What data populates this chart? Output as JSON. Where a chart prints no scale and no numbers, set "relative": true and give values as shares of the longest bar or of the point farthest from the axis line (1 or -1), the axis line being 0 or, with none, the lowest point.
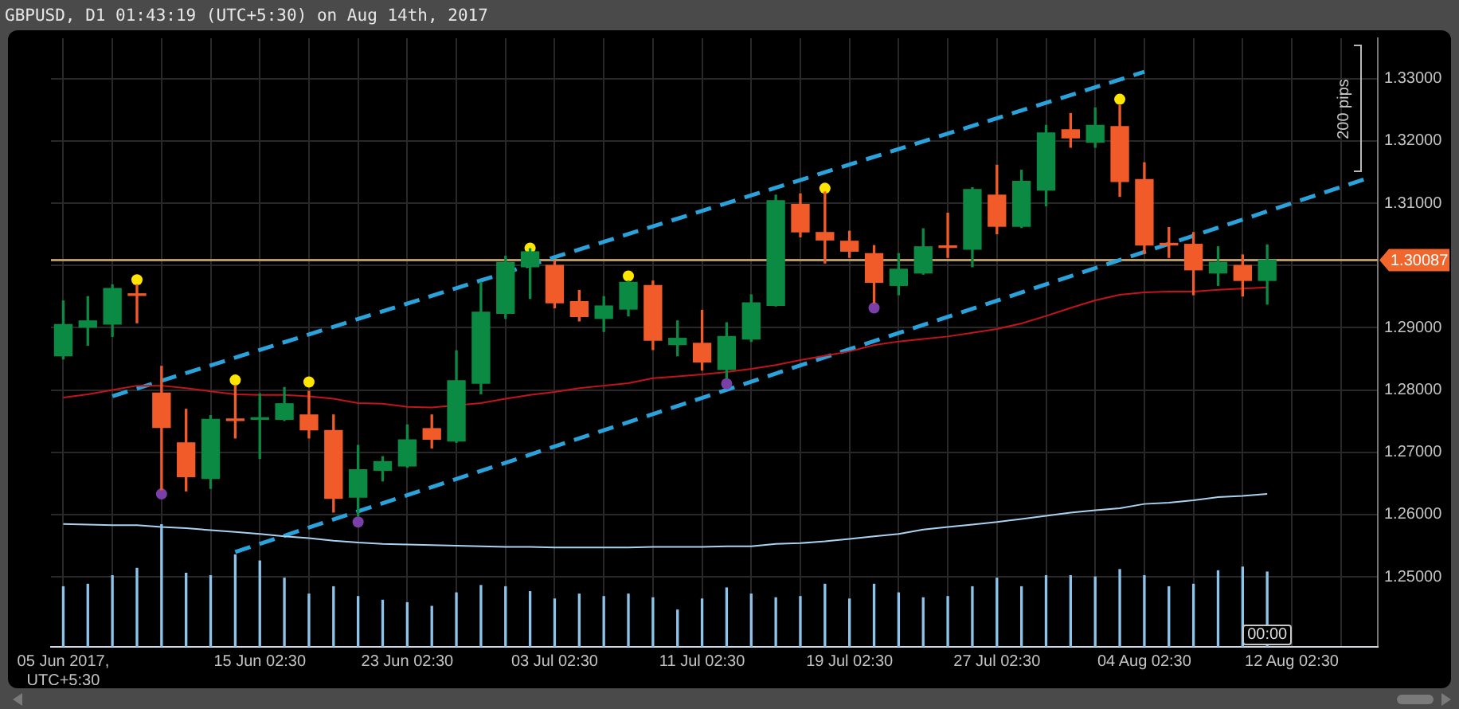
{
  "chart_data": [
    {
      "type": "candlestick",
      "title": "GBPUSD, D1 01:43:19 (UTC+5:30) on Aug 14th, 2017",
      "categories": [
        "05 Jun 2017, UTC+5:30",
        null,
        null,
        null,
        null,
        null,
        null,
        null,
        "15 Jun 02:30",
        null,
        null,
        null,
        null,
        null,
        "23 Jun 02:30",
        null,
        null,
        null,
        null,
        null,
        "03 Jul 02:30",
        null,
        null,
        null,
        null,
        null,
        "11 Jul 02:30",
        null,
        null,
        null,
        null,
        null,
        "19 Jul 02:30",
        null,
        null,
        null,
        null,
        null,
        "27 Jul 02:30",
        null,
        null,
        null,
        null,
        null,
        "04 Aug 02:30",
        null,
        null,
        null,
        null,
        null,
        "12 Aug 02:30",
        null,
        null,
        null
      ],
      "ohlc": [
        [
          1.2855,
          1.2943,
          1.285,
          1.2905
        ],
        [
          1.2901,
          1.295,
          1.2872,
          1.2911
        ],
        [
          1.2906,
          1.2969,
          1.2886,
          1.2963
        ],
        [
          1.2953,
          1.2969,
          1.2908,
          1.2952
        ],
        [
          1.2795,
          1.2838,
          1.264,
          1.274
        ],
        [
          1.2715,
          1.2769,
          1.2638,
          1.2661
        ],
        [
          1.2658,
          1.2759,
          1.2642,
          1.2753
        ],
        [
          1.2752,
          1.2807,
          1.2723,
          1.2751
        ],
        [
          1.2753,
          1.2794,
          1.269,
          1.2754
        ],
        [
          1.2753,
          1.2804,
          1.2751,
          1.2778
        ],
        [
          1.276,
          1.2798,
          1.2723,
          1.2736
        ],
        [
          1.2735,
          1.276,
          1.2604,
          1.2626
        ],
        [
          1.2628,
          1.2711,
          1.2598,
          1.2672
        ],
        [
          1.2671,
          1.2693,
          1.2654,
          1.2685
        ],
        [
          1.2678,
          1.2744,
          1.2676,
          1.272
        ],
        [
          1.2738,
          1.276,
          1.2707,
          1.2721
        ],
        [
          1.2718,
          1.2863,
          1.2716,
          1.2815
        ],
        [
          1.2811,
          1.2973,
          1.2794,
          1.2925
        ],
        [
          1.2923,
          1.3015,
          1.2915,
          1.3005
        ],
        [
          1.2998,
          1.3027,
          1.2947,
          1.3022
        ],
        [
          1.3,
          1.3007,
          1.2932,
          1.294
        ],
        [
          1.2942,
          1.296,
          1.2911,
          1.2918
        ],
        [
          1.2915,
          1.295,
          1.2894,
          1.2935
        ],
        [
          1.293,
          1.2975,
          1.2919,
          1.2973
        ],
        [
          1.2968,
          1.2975,
          1.2865,
          1.288
        ],
        [
          1.2873,
          1.2911,
          1.2855,
          1.2883
        ],
        [
          1.2875,
          1.2928,
          1.2832,
          1.2845
        ],
        [
          1.2833,
          1.2908,
          1.2819,
          1.2886
        ],
        [
          1.2882,
          1.2953,
          1.2878,
          1.294
        ],
        [
          1.2936,
          1.3113,
          1.2935,
          1.3104
        ],
        [
          1.3098,
          1.3115,
          1.3046,
          1.3054
        ],
        [
          1.3053,
          1.3118,
          1.3004,
          1.3041
        ],
        [
          1.3039,
          1.3055,
          1.3013,
          1.3023
        ],
        [
          1.3019,
          1.3032,
          1.294,
          1.2973
        ],
        [
          1.2968,
          1.3019,
          1.2953,
          1.2994
        ],
        [
          1.2988,
          1.3059,
          1.2986,
          1.303
        ],
        [
          1.303,
          1.3084,
          1.3013,
          1.3029
        ],
        [
          1.3026,
          1.3125,
          1.2998,
          1.3122
        ],
        [
          1.3113,
          1.3161,
          1.3051,
          1.3063
        ],
        [
          1.3063,
          1.3153,
          1.3061,
          1.3135
        ],
        [
          1.3121,
          1.3225,
          1.3096,
          1.3213
        ],
        [
          1.3218,
          1.3244,
          1.319,
          1.3205
        ],
        [
          1.3198,
          1.3253,
          1.319,
          1.3225
        ],
        [
          1.3223,
          1.3257,
          1.3111,
          1.3135
        ],
        [
          1.3138,
          1.3165,
          1.3019,
          1.3033
        ],
        [
          1.3034,
          1.3061,
          1.3013,
          1.3033
        ],
        [
          1.3034,
          1.3053,
          1.2953,
          1.2993
        ],
        [
          1.2988,
          1.303,
          1.2968,
          1.3005
        ],
        [
          1.3,
          1.3017,
          1.2951,
          1.2976
        ],
        [
          1.2976,
          1.3033,
          1.2938,
          1.30087
        ],
        null,
        null,
        null,
        null
      ],
      "colors": [
        "#0b8a43",
        "#0b8a43",
        "#0b8a43",
        "#f15a29",
        "#f15a29",
        "#f15a29",
        "#0b8a43",
        "#f15a29",
        "#0b8a43",
        "#0b8a43",
        "#f15a29",
        "#f15a29",
        "#0b8a43",
        "#0b8a43",
        "#0b8a43",
        "#f15a29",
        "#0b8a43",
        "#0b8a43",
        "#0b8a43",
        "#0b8a43",
        "#f15a29",
        "#f15a29",
        "#0b8a43",
        "#0b8a43",
        "#f15a29",
        "#0b8a43",
        "#f15a29",
        "#0b8a43",
        "#0b8a43",
        "#0b8a43",
        "#f15a29",
        "#f15a29",
        "#f15a29",
        "#f15a29",
        "#0b8a43",
        "#0b8a43",
        "#f15a29",
        "#0b8a43",
        "#f15a29",
        "#0b8a43",
        "#0b8a43",
        "#f15a29",
        "#0b8a43",
        "#f15a29",
        "#f15a29",
        "#f15a29",
        "#f15a29",
        "#0b8a43",
        "#f15a29",
        "#0b8a43",
        null,
        null,
        null,
        null
      ],
      "series": [
        {
          "type": "line",
          "color": "#c3141c",
          "values": [
            1.2788,
            1.2793,
            1.28,
            1.2807,
            1.2807,
            1.2803,
            1.2798,
            1.2793,
            1.2792,
            1.2792,
            1.279,
            1.2786,
            1.2779,
            1.2778,
            1.2773,
            1.2772,
            null,
            1.2779,
            1.2786,
            1.2792,
            1.2797,
            1.2803,
            1.2807,
            1.2811,
            1.2819,
            1.2822,
            1.2825,
            1.2829,
            1.2834,
            1.284,
            1.2848,
            1.2855,
            1.2862,
            1.2872,
            1.2878,
            1.2882,
            1.2886,
            1.2892,
            1.2898,
            1.2907,
            1.2919,
            1.2932,
            1.2944,
            1.2953,
            1.2957,
            1.2958,
            1.2958,
            1.2961,
            1.2963,
            1.2965,
            null,
            null,
            null,
            null
          ]
        },
        {
          "type": "line",
          "color": "#a8d2f0",
          "values": [
            1.2585,
            1.2584,
            1.2583,
            1.2583,
            1.258,
            1.2578,
            1.2575,
            1.2572,
            1.2569,
            1.2565,
            1.2562,
            1.2558,
            1.2555,
            1.2553,
            1.2552,
            1.2551,
            1.255,
            1.2549,
            1.2548,
            1.2548,
            1.2547,
            1.2547,
            1.2547,
            1.2547,
            1.2548,
            1.2548,
            1.2548,
            1.2549,
            1.2549,
            1.2553,
            1.2554,
            1.2557,
            1.2561,
            1.2565,
            1.2569,
            1.2576,
            1.258,
            1.2584,
            1.2588,
            1.2593,
            1.2598,
            1.2603,
            1.2607,
            1.261,
            1.2617,
            1.2619,
            1.2623,
            1.2628,
            1.263,
            1.2633,
            null,
            null,
            null,
            null
          ]
        },
        {
          "type": "line",
          "color": "#2aa3dc",
          "line_style": "dashed",
          "values": [
            null,
            null,
            1.279,
            null,
            null,
            null,
            null,
            null,
            null,
            null,
            null,
            null,
            null,
            null,
            null,
            null,
            null,
            null,
            null,
            null,
            null,
            null,
            null,
            null,
            null,
            null,
            null,
            null,
            null,
            null,
            null,
            null,
            null,
            null,
            null,
            null,
            null,
            null,
            null,
            null,
            null,
            null,
            null,
            null,
            1.3311,
            null,
            null,
            null,
            null,
            null,
            null,
            null,
            null,
            null
          ]
        },
        {
          "type": "line",
          "color": "#2aa3dc",
          "line_style": "dashed",
          "values": [
            null,
            null,
            null,
            null,
            null,
            null,
            null,
            1.254,
            null,
            null,
            null,
            null,
            null,
            null,
            null,
            null,
            null,
            null,
            null,
            null,
            null,
            null,
            null,
            null,
            null,
            null,
            null,
            null,
            null,
            null,
            null,
            null,
            null,
            null,
            null,
            null,
            null,
            null,
            null,
            null,
            null,
            null,
            null,
            null,
            null,
            null,
            null,
            null,
            null,
            null,
            null,
            null,
            null,
            1.3139
          ]
        },
        {
          "type": "scatter",
          "color": "#ffe600",
          "marker": "circle",
          "values": [
            null,
            null,
            null,
            1.2977,
            null,
            null,
            null,
            1.2816,
            null,
            null,
            1.2813,
            null,
            null,
            null,
            null,
            null,
            null,
            null,
            null,
            1.3028,
            null,
            null,
            null,
            1.2983,
            null,
            null,
            null,
            null,
            null,
            null,
            null,
            1.3124,
            null,
            null,
            null,
            null,
            null,
            null,
            null,
            null,
            null,
            null,
            null,
            1.3267,
            null,
            null,
            null,
            null,
            null,
            null,
            null,
            null,
            null,
            null
          ]
        },
        {
          "type": "scatter",
          "color": "#7b3fa8",
          "marker": "circle",
          "values": [
            null,
            null,
            null,
            null,
            1.2633,
            null,
            null,
            null,
            null,
            null,
            null,
            null,
            1.2588,
            null,
            null,
            null,
            null,
            null,
            null,
            null,
            null,
            null,
            null,
            null,
            null,
            null,
            null,
            1.281,
            null,
            null,
            null,
            null,
            null,
            1.2932,
            null,
            null,
            null,
            null,
            null,
            null,
            null,
            null,
            null,
            null,
            null,
            null,
            null,
            null,
            null,
            null,
            null,
            null,
            null,
            null
          ]
        }
      ],
      "ylim": [
        1.23875,
        1.3365
      ],
      "yticks": [
        {
          "value": 1.25,
          "label": "1.25000"
        },
        {
          "value": 1.26,
          "label": "1.26000"
        },
        {
          "value": 1.27,
          "label": "1.27000"
        },
        {
          "value": 1.28,
          "label": "1.28000"
        },
        {
          "value": 1.29,
          "label": "1.29000"
        },
        {
          "value": 1.3,
          "label": null
        },
        {
          "value": 1.31,
          "label": "1.31000"
        },
        {
          "value": 1.32,
          "label": "1.32000"
        },
        {
          "value": 1.33,
          "label": "1.33000"
        }
      ],
      "grid": true,
      "ref_lines": [
        {
          "axis": "y",
          "value": 1.30087,
          "label": "1.30087",
          "color": "#b89a5e"
        }
      ],
      "annotations": [
        "200 pips",
        "00:00"
      ]
    },
    {
      "type": "bar",
      "relative": true,
      "tick_labels": false,
      "color": "#8cc4ec",
      "categories": [
        null,
        null,
        null,
        null,
        null,
        null,
        null,
        null,
        null,
        null,
        null,
        null,
        null,
        null,
        null,
        null,
        null,
        null,
        null,
        null,
        null,
        null,
        null,
        null,
        null,
        null,
        null,
        null,
        null,
        null,
        null,
        null,
        null,
        null,
        null,
        null,
        null,
        null,
        null,
        null,
        null,
        null,
        null,
        null,
        null,
        null,
        null,
        null,
        null,
        null,
        null,
        null,
        null,
        null
      ],
      "values": [
        0.49,
        0.51,
        0.58,
        0.64,
        1,
        0.6,
        0.58,
        0.75,
        0.7,
        0.56,
        0.43,
        0.49,
        0.41,
        0.38,
        0.36,
        0.33,
        0.44,
        0.5,
        0.49,
        0.45,
        0.39,
        0.43,
        0.41,
        0.43,
        0.4,
        0.3,
        0.39,
        0.48,
        0.43,
        0.4,
        0.41,
        0.51,
        0.39,
        0.51,
        0.44,
        0.4,
        0.41,
        0.49,
        0.56,
        0.49,
        0.58,
        0.58,
        0.57,
        0.63,
        0.58,
        0.49,
        0.51,
        0.62,
        0.65,
        0.61,
        null,
        null,
        null,
        null
      ]
    }
  ]
}
